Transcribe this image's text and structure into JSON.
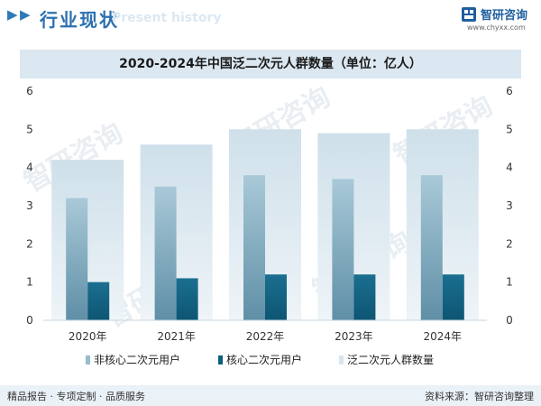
{
  "header": {
    "section_title": "行业现状",
    "section_subtitle": "Present history",
    "brand_name": "智研咨询",
    "brand_url": "www.chyxx.com"
  },
  "colors": {
    "total": "#d7e6ee",
    "non_core": "#97bccd",
    "core": "#0f5f80",
    "accent": "#2c70b0"
  },
  "chart_data": {
    "type": "bar",
    "title": "2020-2024年中国泛二次元人群数量（单位：亿人）",
    "categories": [
      "2020年",
      "2021年",
      "2022年",
      "2023年",
      "2024年"
    ],
    "series": [
      {
        "name": "非核心二次元用户",
        "values": [
          3.2,
          3.5,
          3.8,
          3.7,
          3.8
        ]
      },
      {
        "name": "核心二次元用户",
        "values": [
          1.0,
          1.1,
          1.2,
          1.2,
          1.2
        ]
      },
      {
        "name": "泛二次元人群数量",
        "values": [
          4.2,
          4.6,
          5.0,
          4.9,
          5.0
        ]
      }
    ],
    "ylim": [
      0,
      6
    ],
    "yticks": [
      "0",
      "1",
      "2",
      "3",
      "4",
      "5",
      "6"
    ],
    "y2ticks": [
      "0",
      "1",
      "2",
      "3",
      "4",
      "5",
      "6"
    ],
    "legend_position": "bottom"
  },
  "watermark": {
    "text": "智研咨询"
  },
  "footer": {
    "left": "精品报告 · 专项定制 · 品质服务",
    "right": "资料来源：智研咨询整理"
  }
}
